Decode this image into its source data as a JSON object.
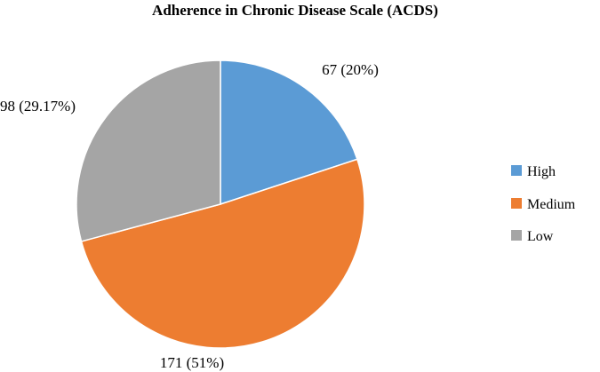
{
  "chart_data": {
    "type": "pie",
    "title": "Adherence in Chronic Disease Scale (ACDS)",
    "legend_position": "right",
    "start_angle_deg": 0,
    "direction": "clockwise",
    "slices": [
      {
        "name": "High",
        "value": 67,
        "label": "67 (20%)",
        "color": "#5B9BD5"
      },
      {
        "name": "Medium",
        "value": 171,
        "label": "171 (51%)",
        "color": "#ED7D31"
      },
      {
        "name": "Low",
        "value": 98,
        "label": "98 (29.17%)",
        "color": "#A5A5A5"
      }
    ]
  }
}
